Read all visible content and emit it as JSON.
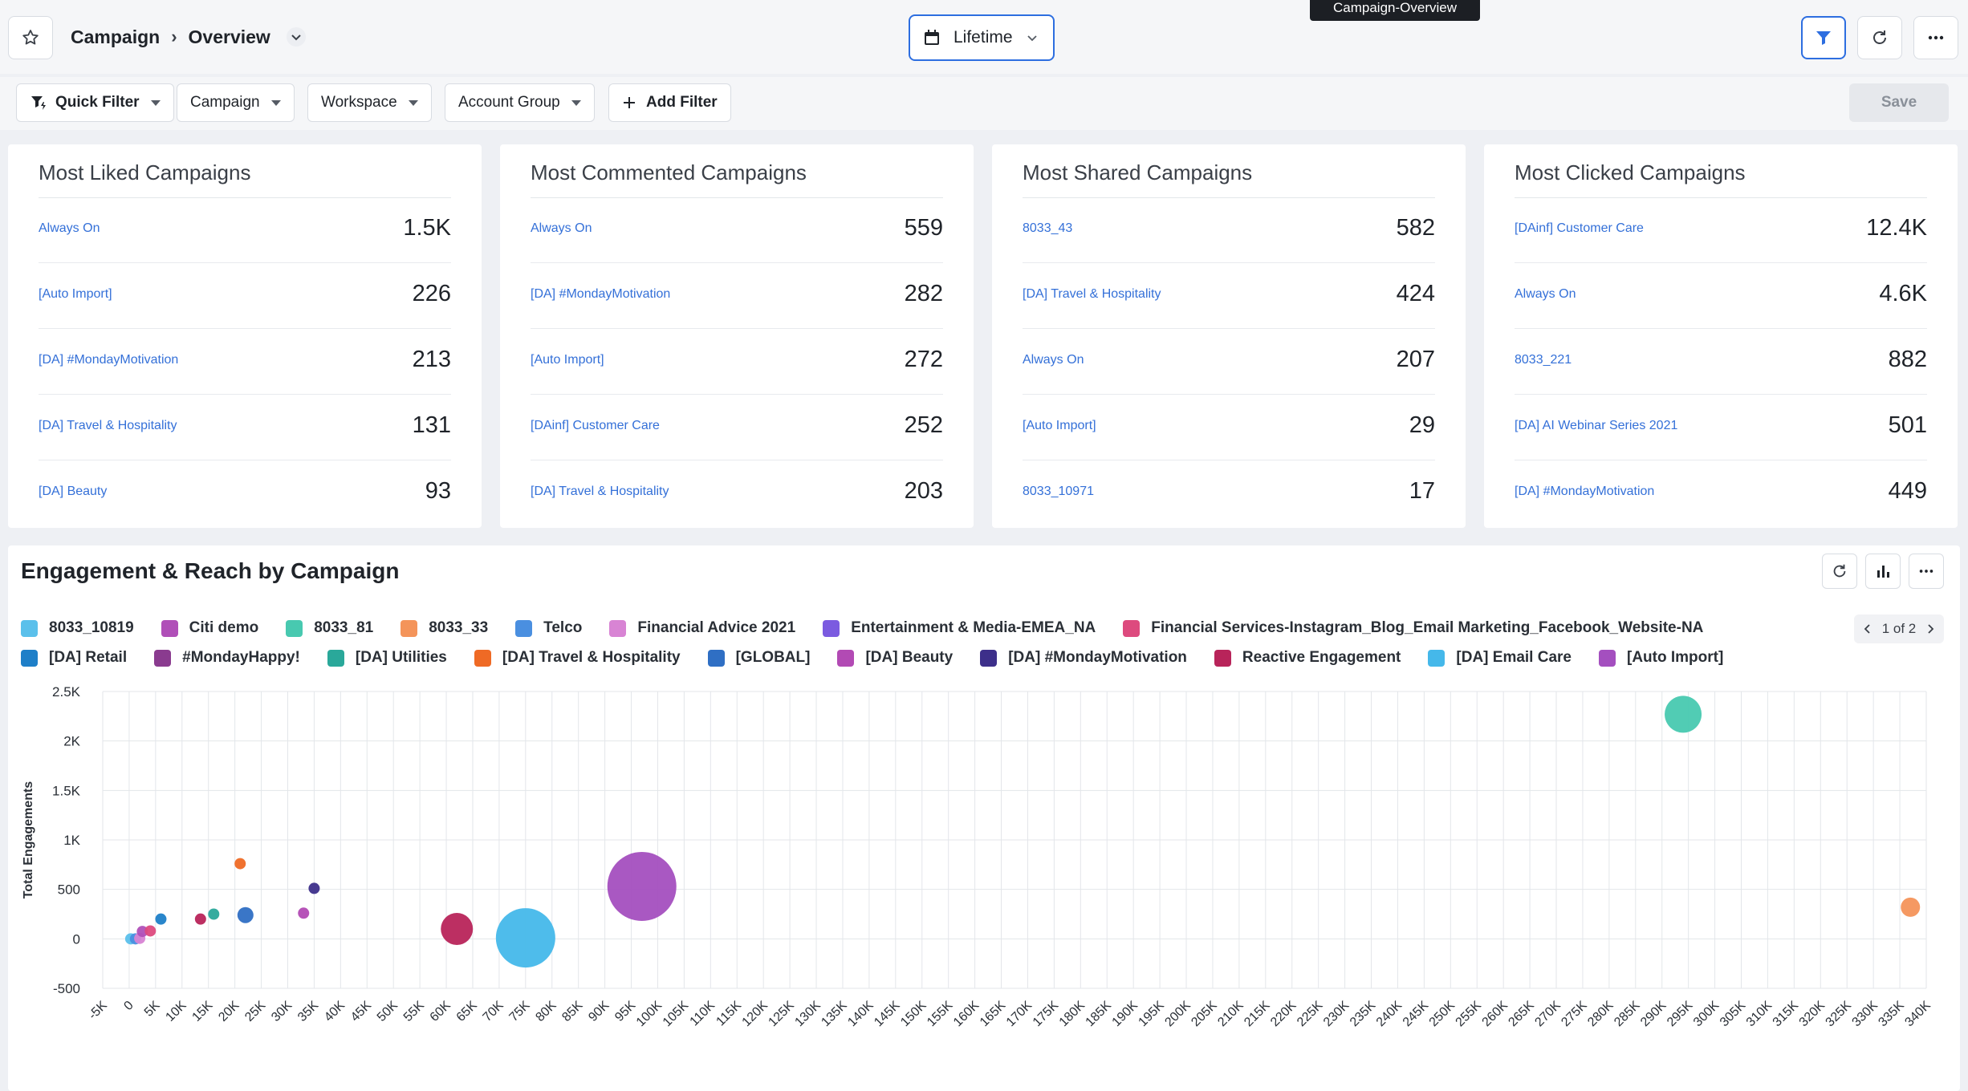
{
  "header": {
    "breadcrumb_parent": "Campaign",
    "breadcrumb_current": "Overview",
    "date_range": "Lifetime",
    "tooltip": "Campaign-Overview"
  },
  "filters": {
    "quick_filter": "Quick Filter",
    "campaign": "Campaign",
    "workspace": "Workspace",
    "account_group": "Account Group",
    "add_filter": "Add Filter",
    "save": "Save"
  },
  "cards": [
    {
      "title": "Most Liked Campaigns",
      "rows": [
        {
          "name": "Always On",
          "value": "1.5K"
        },
        {
          "name": "[Auto Import]",
          "value": "226"
        },
        {
          "name": "[DA] #MondayMotivation",
          "value": "213"
        },
        {
          "name": "[DA] Travel & Hospitality",
          "value": "131"
        },
        {
          "name": "[DA] Beauty",
          "value": "93"
        }
      ]
    },
    {
      "title": "Most Commented Campaigns",
      "rows": [
        {
          "name": "Always On",
          "value": "559"
        },
        {
          "name": "[DA] #MondayMotivation",
          "value": "282"
        },
        {
          "name": "[Auto Import]",
          "value": "272"
        },
        {
          "name": "[DAinf] Customer Care",
          "value": "252"
        },
        {
          "name": "[DA] Travel & Hospitality",
          "value": "203"
        }
      ]
    },
    {
      "title": "Most Shared Campaigns",
      "rows": [
        {
          "name": "8033_43",
          "value": "582"
        },
        {
          "name": "[DA] Travel & Hospitality",
          "value": "424"
        },
        {
          "name": "Always On",
          "value": "207"
        },
        {
          "name": "[Auto Import]",
          "value": "29"
        },
        {
          "name": "8033_10971",
          "value": "17"
        }
      ]
    },
    {
      "title": "Most Clicked Campaigns",
      "rows": [
        {
          "name": "[DAinf] Customer Care",
          "value": "12.4K"
        },
        {
          "name": "Always On",
          "value": "4.6K"
        },
        {
          "name": "8033_221",
          "value": "882"
        },
        {
          "name": "[DA] AI Webinar Series 2021",
          "value": "501"
        },
        {
          "name": "[DA] #MondayMotivation",
          "value": "449"
        }
      ]
    }
  ],
  "chart_panel": {
    "title": "Engagement & Reach by Campaign",
    "pager": "1 of 2"
  },
  "chart_data": {
    "type": "scatter",
    "title": "Engagement & Reach by Campaign",
    "xlabel": "",
    "ylabel": "Total Engagements",
    "xlim": [
      -5000,
      340000
    ],
    "ylim": [
      -500,
      2500
    ],
    "x_tick_labels": [
      "-5K",
      "0",
      "5K",
      "10K",
      "15K",
      "20K",
      "25K",
      "30K",
      "35K",
      "40K",
      "45K",
      "50K",
      "55K",
      "60K",
      "65K",
      "70K",
      "75K",
      "80K",
      "85K",
      "90K",
      "95K",
      "100K",
      "105K",
      "110K",
      "115K",
      "120K",
      "125K",
      "130K",
      "135K",
      "140K",
      "145K",
      "150K",
      "155K",
      "160K",
      "165K",
      "170K",
      "175K",
      "180K",
      "185K",
      "190K",
      "195K",
      "200K",
      "205K",
      "210K",
      "215K",
      "220K",
      "225K",
      "230K",
      "235K",
      "240K",
      "245K",
      "250K",
      "255K",
      "260K",
      "265K",
      "270K",
      "275K",
      "280K",
      "285K",
      "290K",
      "295K",
      "300K",
      "305K",
      "310K",
      "315K",
      "320K",
      "325K",
      "330K",
      "335K",
      "340K"
    ],
    "y_tick_labels": [
      "2.5K",
      "2K",
      "1.5K",
      "1K",
      "500",
      "0",
      "-500"
    ],
    "y_ticks": [
      2500,
      2000,
      1500,
      1000,
      500,
      0,
      -500
    ],
    "grid": true,
    "legend": [
      [
        {
          "name": "8033_10819",
          "color": "#5bc0eb"
        },
        {
          "name": "Citi demo",
          "color": "#b04fb8"
        },
        {
          "name": "8033_81",
          "color": "#48c9b0"
        },
        {
          "name": "8033_33",
          "color": "#f4945a"
        },
        {
          "name": "Telco",
          "color": "#4a8fe0"
        },
        {
          "name": "Financial Advice 2021",
          "color": "#d884d4"
        },
        {
          "name": "Entertainment & Media-EMEA_NA",
          "color": "#7b5be0"
        },
        {
          "name": "Financial Services-Instagram_Blog_Email Marketing_Facebook_Website-NA",
          "color": "#dd4a7e"
        }
      ],
      [
        {
          "name": "[DA] Retail",
          "color": "#1e7fc8"
        },
        {
          "name": "#MondayHappy!",
          "color": "#8a3b8f"
        },
        {
          "name": "[DA] Utilities",
          "color": "#2aa89a"
        },
        {
          "name": "[DA] Travel & Hospitality",
          "color": "#ef6a25"
        },
        {
          "name": "[GLOBAL]",
          "color": "#2f6fc4"
        },
        {
          "name": "[DA] Beauty",
          "color": "#b24ab4"
        },
        {
          "name": "[DA] #MondayMotivation",
          "color": "#3d2f8a"
        },
        {
          "name": "Reactive Engagement",
          "color": "#b8245a"
        },
        {
          "name": "[DA] Email Care",
          "color": "#45b8ea"
        },
        {
          "name": "[Auto Import]",
          "color": "#a44fbf"
        }
      ]
    ],
    "points": [
      {
        "x": 300,
        "y": 0,
        "color": "#5bc0eb"
      },
      {
        "x": 1200,
        "y": 0,
        "color": "#4a8fe0"
      },
      {
        "x": 2000,
        "y": 5,
        "color": "#d884d4"
      },
      {
        "x": 2500,
        "y": 75,
        "color": "#b04fb8"
      },
      {
        "x": 4000,
        "y": 80,
        "color": "#dd4a7e"
      },
      {
        "x": 6000,
        "y": 200,
        "color": "#1e7fc8"
      },
      {
        "x": 13500,
        "y": 200,
        "color": "#b8245a"
      },
      {
        "x": 16000,
        "y": 250,
        "color": "#2aa89a"
      },
      {
        "x": 21000,
        "y": 760,
        "color": "#ef6a25"
      },
      {
        "x": 22000,
        "y": 240,
        "color": "#2f6fc4"
      },
      {
        "x": 33000,
        "y": 260,
        "color": "#b24ab4"
      },
      {
        "x": 35000,
        "y": 510,
        "color": "#3d2f8a"
      },
      {
        "x": 62000,
        "y": 100,
        "color": "#b8245a"
      },
      {
        "x": 75000,
        "y": 10,
        "color": "#45b8ea"
      },
      {
        "x": 97000,
        "y": 530,
        "color": "#a44fbf"
      },
      {
        "x": 294000,
        "y": 2270,
        "color": "#48c9b0"
      },
      {
        "x": 337000,
        "y": 320,
        "color": "#f4945a"
      }
    ]
  }
}
